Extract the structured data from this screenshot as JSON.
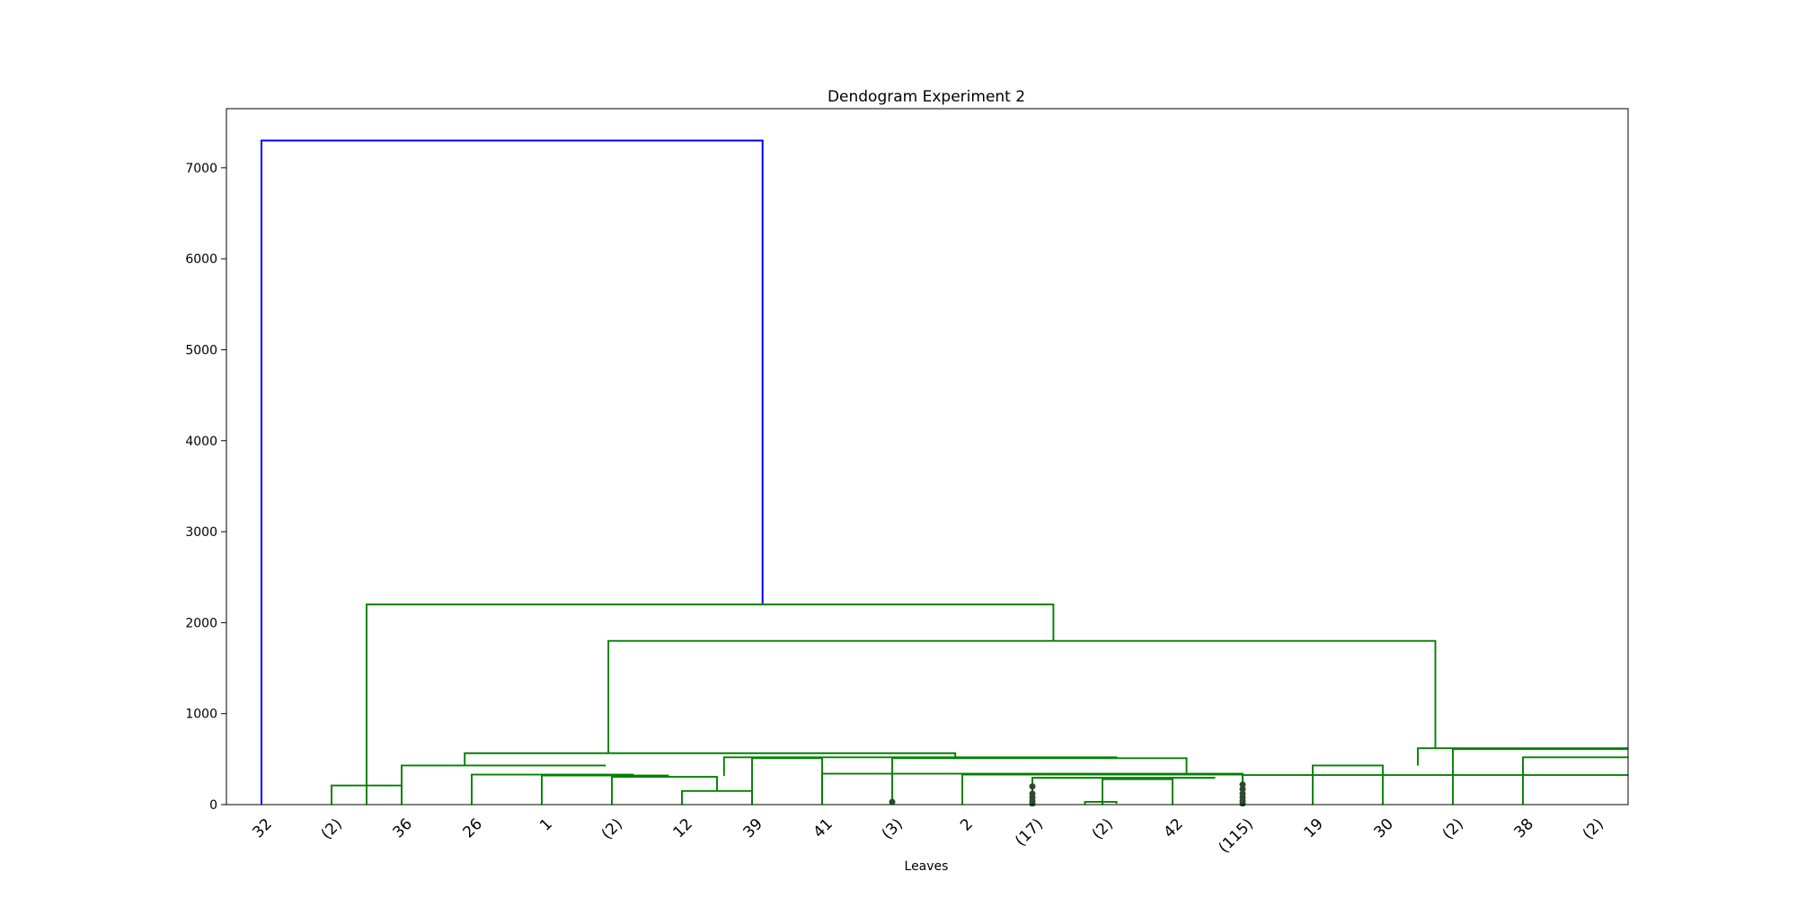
{
  "chart_data": {
    "type": "dendrogram",
    "title": "Dendogram Experiment 2",
    "xlabel": "Leaves",
    "ylabel": "",
    "ylim": [
      0,
      7650
    ],
    "yticks": [
      0,
      1000,
      2000,
      3000,
      4000,
      5000,
      6000,
      7000
    ],
    "grid": false,
    "colors": {
      "root": "#0000ff",
      "cluster": "#008000",
      "truncated_marker": "#2e4a2e"
    },
    "leaves": [
      "32",
      "(2)",
      "36",
      "26",
      "1",
      "(2)",
      "12",
      "39",
      "41",
      "(3)",
      "2",
      "(17)",
      "(2)",
      "42",
      "(115)",
      "19",
      "30",
      "(2)",
      "38",
      "(2)"
    ],
    "merges": [
      {
        "color": "blue",
        "left": 0,
        "right": 7.15,
        "height": 7300,
        "left_h": 0,
        "right_h": 2200
      },
      {
        "color": "green",
        "left": 1.5,
        "right": 11.3,
        "height": 2200,
        "left_h": 0,
        "right_h": 1800
      },
      {
        "color": "green",
        "left": 1,
        "right": 2,
        "height": 210,
        "left_h": 0,
        "right_h": 0
      },
      {
        "color": "green",
        "left": 4.95,
        "right": 16.75,
        "height": 1800,
        "left_h": 565,
        "right_h": 620
      },
      {
        "color": "green",
        "left": 2.9,
        "right": 9.9,
        "height": 565,
        "left_h": 430,
        "right_h": 520
      },
      {
        "color": "green",
        "left": 2,
        "right": 4.9,
        "height": 430,
        "left_h": 0,
        "right_h": 420
      },
      {
        "color": "green",
        "left": 3,
        "right": 5.3,
        "height": 330,
        "left_h": 0,
        "right_h": 320
      },
      {
        "color": "green",
        "left": 4,
        "right": 5.8,
        "height": 320,
        "left_h": 0,
        "right_h": 310
      },
      {
        "color": "green",
        "left": 5,
        "right": 6.5,
        "height": 305,
        "left_h": 0,
        "right_h": 150
      },
      {
        "color": "green",
        "left": 6,
        "right": 7,
        "height": 150,
        "left_h": 0,
        "right_h": 0
      },
      {
        "color": "green",
        "left": 6.6,
        "right": 12.2,
        "height": 520,
        "left_h": 315,
        "right_h": 510
      },
      {
        "color": "green",
        "left": 7,
        "right": 8,
        "height": 510,
        "left_h": 0,
        "right_h": 0
      },
      {
        "color": "green",
        "left": 9,
        "right": 13.2,
        "height": 510,
        "left_h": 0,
        "right_h": 340
      },
      {
        "color": "green",
        "left": 8,
        "right": 14,
        "height": 340,
        "left_h": 0,
        "right_h": 0
      },
      {
        "color": "green",
        "left": 10,
        "right": 14,
        "height": 330,
        "left_h": 0,
        "right_h": 330
      },
      {
        "color": "green",
        "left": 11,
        "right": 13.6,
        "height": 295,
        "left_h": 0,
        "right_h": 290
      },
      {
        "color": "green",
        "left": 11.75,
        "right": 12.2,
        "height": 30,
        "left_h": 0,
        "right_h": 10
      },
      {
        "color": "green",
        "left": 12,
        "right": 13,
        "height": 280,
        "left_h": 0,
        "right_h": 0
      },
      {
        "color": "green",
        "left": 14,
        "right": 20,
        "height": 325,
        "left_h": 0,
        "right_h": 325
      },
      {
        "color": "green",
        "left": 15,
        "right": 16,
        "height": 430,
        "left_h": 0,
        "right_h": 0
      },
      {
        "color": "green",
        "left": 16.5,
        "right": 19.5,
        "height": 620,
        "left_h": 430,
        "right_h": 610
      },
      {
        "color": "green",
        "left": 17,
        "right": 20,
        "height": 610,
        "left_h": 0,
        "right_h": 520
      },
      {
        "color": "green",
        "left": 18,
        "right": 20,
        "height": 520,
        "left_h": 0,
        "right_h": 0
      }
    ],
    "truncated_markers": [
      {
        "leaf": 9,
        "heights": [
          30
        ]
      },
      {
        "leaf": 11,
        "heights": [
          200,
          120,
          80,
          40,
          10
        ]
      },
      {
        "leaf": 14,
        "heights": [
          220,
          170,
          120,
          80,
          40,
          10
        ]
      }
    ]
  }
}
